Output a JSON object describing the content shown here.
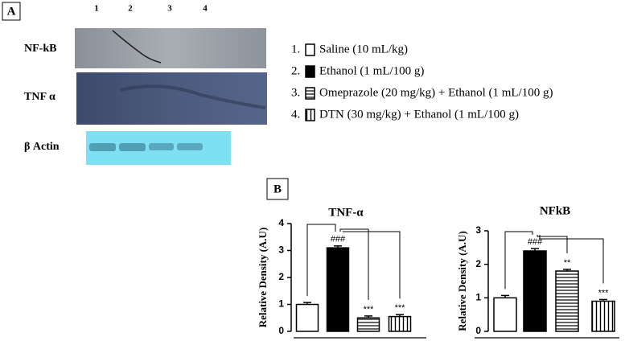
{
  "panels": [
    "A",
    "B"
  ],
  "blot": {
    "lanes": [
      "1",
      "2",
      "3",
      "4"
    ],
    "rows": [
      "NF-kB",
      "TNF α",
      "β Actin"
    ]
  },
  "legend": [
    {
      "number": "1.",
      "label": "Saline (10 mL/kg)",
      "pattern": "empty"
    },
    {
      "number": "2.",
      "label": "Ethanol (1 mL/100 g)",
      "pattern": "solid"
    },
    {
      "number": "3.",
      "label": "Omeprazole (20 mg/kg) + Ethanol (1 mL/100 g)",
      "pattern": "horizontal"
    },
    {
      "number": "4.",
      "label": "DTN (30 mg/kg) + Ethanol (1 mL/100 g)",
      "pattern": "vertical"
    }
  ],
  "chart_data": [
    {
      "type": "bar",
      "title": "TNF-α",
      "y_label": "Relative Density (A.U)",
      "categories": [
        null,
        null,
        null,
        null
      ],
      "values": [
        1.0,
        3.1,
        0.5,
        0.55
      ],
      "errors": [
        0.07,
        0.07,
        0.07,
        0.07
      ],
      "annotations": [
        null,
        "###",
        "***",
        "***"
      ],
      "patterns": [
        "empty",
        "solid",
        "horizontal",
        "vertical"
      ],
      "ylim": [
        0,
        4
      ],
      "yticks": [
        0,
        1,
        2,
        3,
        4
      ]
    },
    {
      "type": "bar",
      "title": "NFkB",
      "y_label": "Relative Density (A.U)",
      "categories": [
        null,
        null,
        null,
        null
      ],
      "values": [
        1.0,
        2.4,
        1.8,
        0.9
      ],
      "errors": [
        0.07,
        0.07,
        0.05,
        0.05
      ],
      "annotations": [
        null,
        "###",
        "**",
        "***"
      ],
      "patterns": [
        "empty",
        "solid",
        "horizontal",
        "vertical"
      ],
      "ylim": [
        0,
        3
      ],
      "yticks": [
        0,
        1,
        2,
        3
      ]
    }
  ]
}
